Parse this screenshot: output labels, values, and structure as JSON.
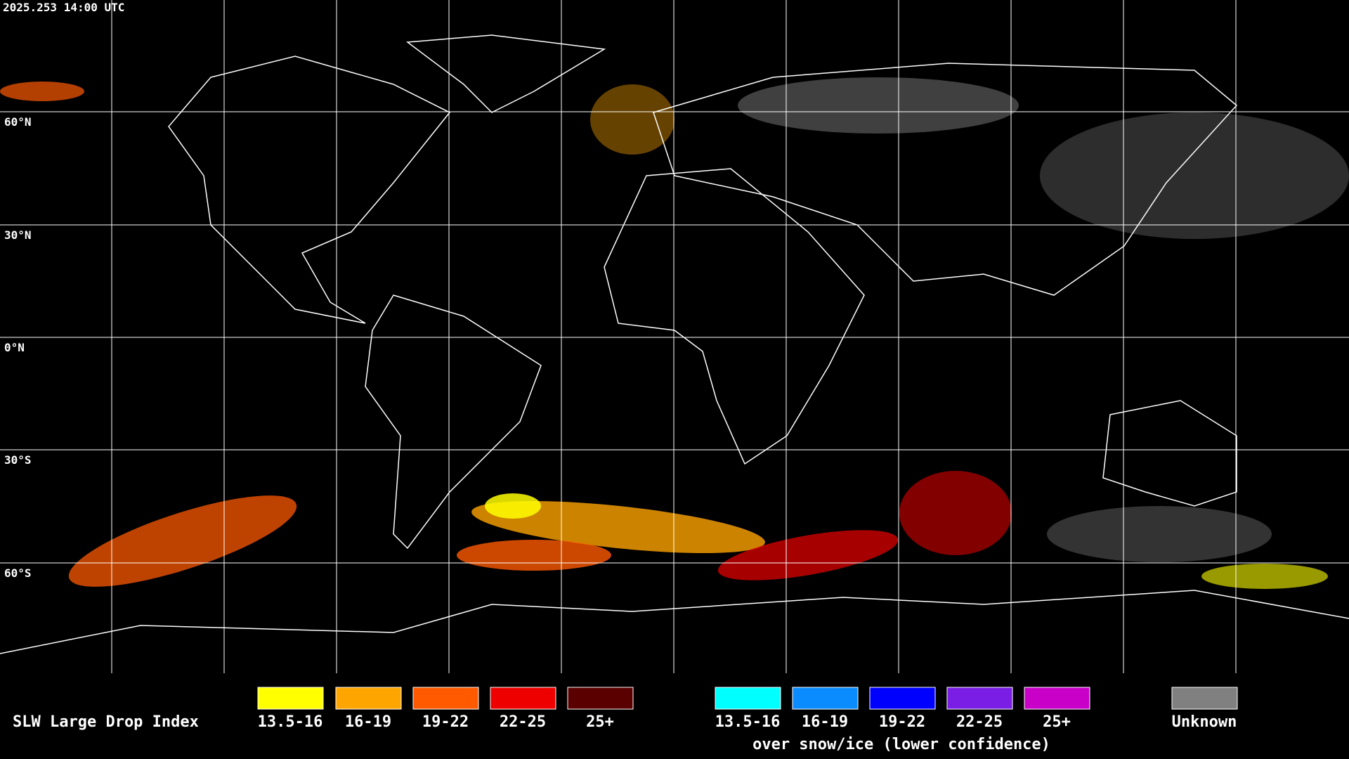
{
  "header": {
    "timestamp": "2025.253 14:00 UTC"
  },
  "map": {
    "latitude_labels": [
      "60°N",
      "30°N",
      "0°N",
      "30°S",
      "60°S"
    ]
  },
  "legend": {
    "title": "SLW Large Drop Index",
    "items": [
      {
        "label": "13.5-16",
        "color": "#ffff00"
      },
      {
        "label": "16-19",
        "color": "#ffa500"
      },
      {
        "label": "19-22",
        "color": "#ff5a00"
      },
      {
        "label": "22-25",
        "color": "#ee0000"
      },
      {
        "label": "25+",
        "color": "#5a0000"
      }
    ],
    "snow_items": [
      {
        "label": "13.5-16",
        "color": "#00ffff"
      },
      {
        "label": "16-19",
        "color": "#0a8cff"
      },
      {
        "label": "19-22",
        "color": "#0000ff"
      },
      {
        "label": "22-25",
        "color": "#7a1ee6"
      },
      {
        "label": "25+",
        "color": "#c800c8"
      }
    ],
    "snow_note": "over snow/ice (lower confidence)",
    "unknown": {
      "label": "Unknown",
      "color": "#808080"
    }
  }
}
